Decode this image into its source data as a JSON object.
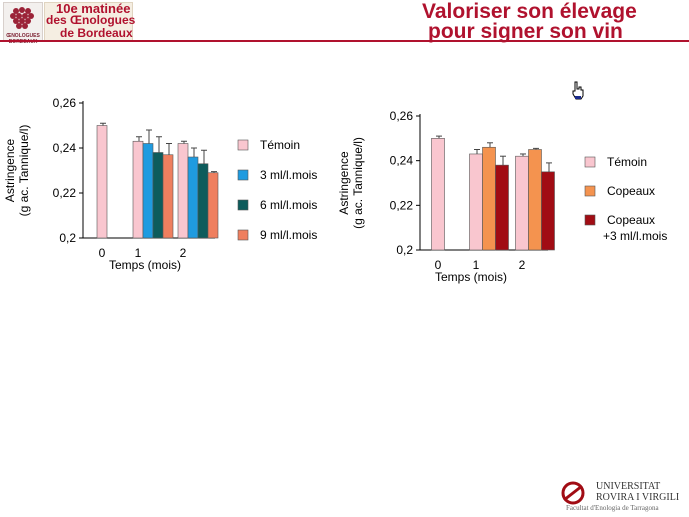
{
  "header": {
    "logo_text": "ŒNOLOGUES BORDEAUX",
    "event_line1": "10e matinée",
    "event_line2": "des Œnologues",
    "event_line3": "de Bordeaux",
    "title_line1": "Valoriser son élevage",
    "title_line2": "pour signer son vin"
  },
  "footer": {
    "university_line1": "UNIVERSITAT",
    "university_line2": "ROVIRA I VIRGILI",
    "faculty": "Facultat d'Enologia de Tarragona"
  },
  "colors": {
    "accent": "#b0122e",
    "temoin": "#f9c6cf",
    "ml3": "#1f9be0",
    "ml6": "#0d5c5c",
    "ml9": "#ef7f5f",
    "copeaux": "#f4934f",
    "copeaux_ml3": "#a10c14"
  },
  "chart_data": [
    {
      "type": "bar",
      "ylabel_line1": "Astringence",
      "ylabel_line2": "(g ac. Tannique/l)",
      "xlabel": "Temps (mois)",
      "categories": [
        "0",
        "1",
        "2"
      ],
      "ylim": [
        0.2,
        0.26
      ],
      "yticks": [
        "0,2",
        "0,22",
        "0,24",
        "0,26"
      ],
      "legend_position": "right",
      "series": [
        {
          "name": "Témoin",
          "color": "#f9c6cf",
          "values": [
            0.25,
            0.243,
            0.242
          ],
          "errors": [
            0.001,
            0.002,
            0.001
          ]
        },
        {
          "name": "3 ml/l.mois",
          "color": "#1f9be0",
          "values": [
            null,
            0.242,
            0.236
          ],
          "errors": [
            null,
            0.006,
            0.004
          ]
        },
        {
          "name": "6 ml/l.mois",
          "color": "#0d5c5c",
          "values": [
            null,
            0.238,
            0.233
          ],
          "errors": [
            null,
            0.007,
            0.006
          ]
        },
        {
          "name": "9 ml/l.mois",
          "color": "#ef7f5f",
          "values": [
            null,
            0.237,
            0.229
          ],
          "errors": [
            null,
            0.005,
            0.0005
          ]
        }
      ]
    },
    {
      "type": "bar",
      "ylabel_line1": "Astringence",
      "ylabel_line2": "(g ac. Tannique/l)",
      "xlabel": "Temps (mois)",
      "categories": [
        "0",
        "1",
        "2"
      ],
      "ylim": [
        0.2,
        0.26
      ],
      "yticks": [
        "0,2",
        "0,22",
        "0,24",
        "0,26"
      ],
      "legend_position": "right",
      "series": [
        {
          "name": "Témoin",
          "color": "#f9c6cf",
          "values": [
            0.25,
            0.243,
            0.242
          ],
          "errors": [
            0.001,
            0.002,
            0.001
          ]
        },
        {
          "name": "Copeaux",
          "color": "#f4934f",
          "values": [
            null,
            0.246,
            0.245
          ],
          "errors": [
            null,
            0.002,
            0.0005
          ]
        },
        {
          "name": "Copeaux",
          "name_line2": "+3 ml/l.mois",
          "color": "#a10c14",
          "values": [
            null,
            0.238,
            0.235
          ],
          "errors": [
            null,
            0.004,
            0.004
          ]
        }
      ]
    }
  ]
}
